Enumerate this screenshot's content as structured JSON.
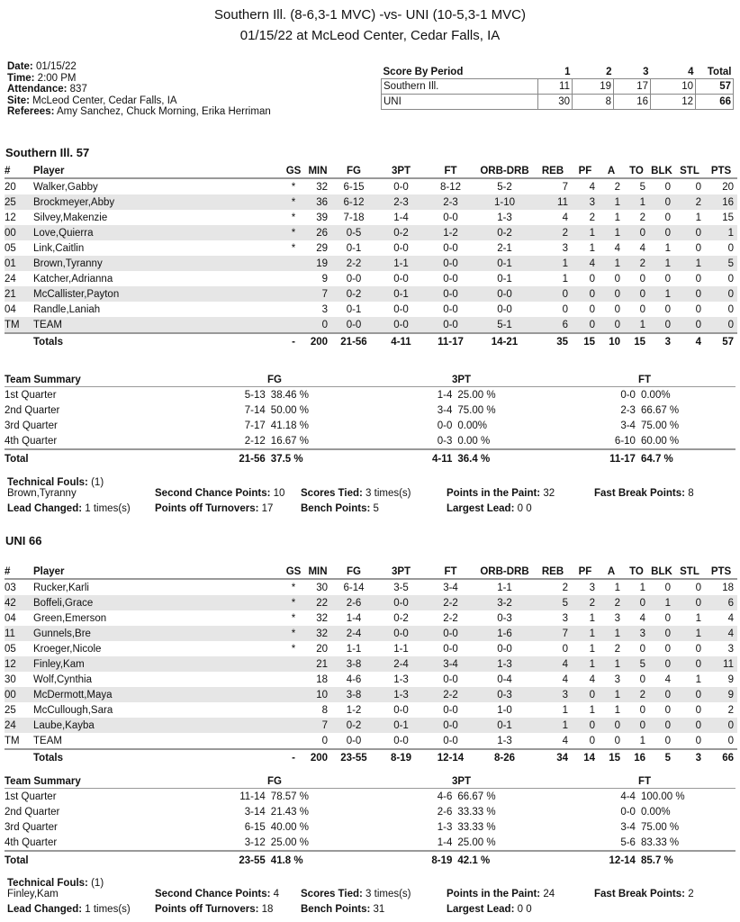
{
  "header": {
    "title": "Southern Ill. (8-6,3-1 MVC) -vs- UNI (10-5,3-1 MVC)",
    "subtitle": "01/15/22 at McLeod Center, Cedar Falls, IA"
  },
  "info": [
    {
      "label": "Date:",
      "value": "01/15/22"
    },
    {
      "label": "Time:",
      "value": "2:00 PM"
    },
    {
      "label": "Attendance:",
      "value": "837"
    },
    {
      "label": "Site:",
      "value": "McLeod Center, Cedar Falls, IA"
    },
    {
      "label": "Referees:",
      "value": "Amy Sanchez, Chuck Morning, Erika Herriman"
    }
  ],
  "score_by_period": {
    "headers": [
      "Score By Period",
      "1",
      "2",
      "3",
      "4",
      "Total"
    ],
    "rows": [
      [
        "Southern Ill.",
        "11",
        "19",
        "17",
        "10",
        "57"
      ],
      [
        "UNI",
        "30",
        "8",
        "16",
        "12",
        "66"
      ]
    ]
  },
  "box_headers": [
    "#",
    "Player",
    "GS",
    "MIN",
    "FG",
    "3PT",
    "FT",
    "ORB-DRB",
    "REB",
    "PF",
    "A",
    "TO",
    "BLK",
    "STL",
    "PTS"
  ],
  "summary_headers": [
    "Team Summary",
    "FG",
    "3PT",
    "FT"
  ],
  "teams": [
    {
      "heading": "Southern Ill. 57",
      "players": [
        [
          "20",
          "Walker,Gabby",
          "*",
          "32",
          "6-15",
          "0-0",
          "8-12",
          "5-2",
          "7",
          "4",
          "2",
          "5",
          "0",
          "0",
          "20"
        ],
        [
          "25",
          "Brockmeyer,Abby",
          "*",
          "36",
          "6-12",
          "2-3",
          "2-3",
          "1-10",
          "11",
          "3",
          "1",
          "1",
          "0",
          "2",
          "16"
        ],
        [
          "12",
          "Silvey,Makenzie",
          "*",
          "39",
          "7-18",
          "1-4",
          "0-0",
          "1-3",
          "4",
          "2",
          "1",
          "2",
          "0",
          "1",
          "15"
        ],
        [
          "00",
          "Love,Quierra",
          "*",
          "26",
          "0-5",
          "0-2",
          "1-2",
          "0-2",
          "2",
          "1",
          "1",
          "0",
          "0",
          "0",
          "1"
        ],
        [
          "05",
          "Link,Caitlin",
          "*",
          "29",
          "0-1",
          "0-0",
          "0-0",
          "2-1",
          "3",
          "1",
          "4",
          "4",
          "1",
          "0",
          "0"
        ],
        [
          "01",
          "Brown,Tyranny",
          "",
          "19",
          "2-2",
          "1-1",
          "0-0",
          "0-1",
          "1",
          "4",
          "1",
          "2",
          "1",
          "1",
          "5"
        ],
        [
          "24",
          "Katcher,Adrianna",
          "",
          "9",
          "0-0",
          "0-0",
          "0-0",
          "0-1",
          "1",
          "0",
          "0",
          "0",
          "0",
          "0",
          "0"
        ],
        [
          "21",
          "McCallister,Payton",
          "",
          "7",
          "0-2",
          "0-1",
          "0-0",
          "0-0",
          "0",
          "0",
          "0",
          "0",
          "1",
          "0",
          "0"
        ],
        [
          "04",
          "Randle,Laniah",
          "",
          "3",
          "0-1",
          "0-0",
          "0-0",
          "0-0",
          "0",
          "0",
          "0",
          "0",
          "0",
          "0",
          "0"
        ],
        [
          "TM",
          "TEAM",
          "",
          "0",
          "0-0",
          "0-0",
          "0-0",
          "5-1",
          "6",
          "0",
          "0",
          "1",
          "0",
          "0",
          "0"
        ]
      ],
      "totals": [
        "",
        "Totals",
        "-",
        "200",
        "21-56",
        "4-11",
        "11-17",
        "14-21",
        "35",
        "15",
        "10",
        "15",
        "3",
        "4",
        "57"
      ],
      "summary": [
        [
          "1st Quarter",
          "5-13",
          "38.46 %",
          "1-4",
          "25.00 %",
          "0-0",
          "0.00%"
        ],
        [
          "2nd Quarter",
          "7-14",
          "50.00 %",
          "3-4",
          "75.00 %",
          "2-3",
          "66.67 %"
        ],
        [
          "3rd Quarter",
          "7-17",
          "41.18 %",
          "0-0",
          "0.00%",
          "3-4",
          "75.00 %"
        ],
        [
          "4th Quarter",
          "2-12",
          "16.67 %",
          "0-3",
          "0.00 %",
          "6-10",
          "60.00 %"
        ]
      ],
      "summary_total": [
        "Total",
        "21-56",
        "37.5 %",
        "4-11",
        "36.4 %",
        "11-17",
        "64.7 %"
      ],
      "tech_label": "Technical Fouls:",
      "tech_value": "(1)",
      "tech_player": "Brown,Tyranny",
      "stats1": [
        {
          "label": "Second Chance Points:",
          "value": "10"
        },
        {
          "label": "Scores Tied:",
          "value": "3 times(s)"
        },
        {
          "label": "Points in the Paint:",
          "value": "32"
        },
        {
          "label": "Fast Break Points:",
          "value": "8"
        }
      ],
      "stats2": [
        {
          "label": "Lead Changed:",
          "value": "1 times(s)"
        },
        {
          "label": "Points off Turnovers:",
          "value": "17"
        },
        {
          "label": "Bench Points:",
          "value": "5"
        },
        {
          "label": "Largest Lead:",
          "value": "0 0"
        }
      ]
    },
    {
      "heading": "UNI 66",
      "players": [
        [
          "03",
          "Rucker,Karli",
          "*",
          "30",
          "6-14",
          "3-5",
          "3-4",
          "1-1",
          "2",
          "3",
          "1",
          "1",
          "0",
          "0",
          "18"
        ],
        [
          "42",
          "Boffeli,Grace",
          "*",
          "22",
          "2-6",
          "0-0",
          "2-2",
          "3-2",
          "5",
          "2",
          "2",
          "0",
          "1",
          "0",
          "6"
        ],
        [
          "04",
          "Green,Emerson",
          "*",
          "32",
          "1-4",
          "0-2",
          "2-2",
          "0-3",
          "3",
          "1",
          "3",
          "4",
          "0",
          "1",
          "4"
        ],
        [
          "11",
          "Gunnels,Bre",
          "*",
          "32",
          "2-4",
          "0-0",
          "0-0",
          "1-6",
          "7",
          "1",
          "1",
          "3",
          "0",
          "1",
          "4"
        ],
        [
          "05",
          "Kroeger,Nicole",
          "*",
          "20",
          "1-1",
          "1-1",
          "0-0",
          "0-0",
          "0",
          "1",
          "2",
          "0",
          "0",
          "0",
          "3"
        ],
        [
          "12",
          "Finley,Kam",
          "",
          "21",
          "3-8",
          "2-4",
          "3-4",
          "1-3",
          "4",
          "1",
          "1",
          "5",
          "0",
          "0",
          "11"
        ],
        [
          "30",
          "Wolf,Cynthia",
          "",
          "18",
          "4-6",
          "1-3",
          "0-0",
          "0-4",
          "4",
          "4",
          "3",
          "0",
          "4",
          "1",
          "9"
        ],
        [
          "00",
          "McDermott,Maya",
          "",
          "10",
          "3-8",
          "1-3",
          "2-2",
          "0-3",
          "3",
          "0",
          "1",
          "2",
          "0",
          "0",
          "9"
        ],
        [
          "25",
          "McCullough,Sara",
          "",
          "8",
          "1-2",
          "0-0",
          "0-0",
          "1-0",
          "1",
          "1",
          "1",
          "0",
          "0",
          "0",
          "2"
        ],
        [
          "24",
          "Laube,Kayba",
          "",
          "7",
          "0-2",
          "0-1",
          "0-0",
          "0-1",
          "1",
          "0",
          "0",
          "0",
          "0",
          "0",
          "0"
        ],
        [
          "TM",
          "TEAM",
          "",
          "0",
          "0-0",
          "0-0",
          "0-0",
          "1-3",
          "4",
          "0",
          "0",
          "1",
          "0",
          "0",
          "0"
        ]
      ],
      "totals": [
        "",
        "Totals",
        "-",
        "200",
        "23-55",
        "8-19",
        "12-14",
        "8-26",
        "34",
        "14",
        "15",
        "16",
        "5",
        "3",
        "66"
      ],
      "summary": [
        [
          "1st Quarter",
          "11-14",
          "78.57 %",
          "4-6",
          "66.67 %",
          "4-4",
          "100.00 %"
        ],
        [
          "2nd Quarter",
          "3-14",
          "21.43 %",
          "2-6",
          "33.33 %",
          "0-0",
          "0.00%"
        ],
        [
          "3rd Quarter",
          "6-15",
          "40.00 %",
          "1-3",
          "33.33 %",
          "3-4",
          "75.00 %"
        ],
        [
          "4th Quarter",
          "3-12",
          "25.00 %",
          "1-4",
          "25.00 %",
          "5-6",
          "83.33 %"
        ]
      ],
      "summary_total": [
        "Total",
        "23-55",
        "41.8 %",
        "8-19",
        "42.1 %",
        "12-14",
        "85.7 %"
      ],
      "tech_label": "Technical Fouls:",
      "tech_value": "(1)",
      "tech_player": "Finley,Kam",
      "stats1": [
        {
          "label": "Second Chance Points:",
          "value": "4"
        },
        {
          "label": "Scores Tied:",
          "value": "3 times(s)"
        },
        {
          "label": "Points in the Paint:",
          "value": "24"
        },
        {
          "label": "Fast Break Points:",
          "value": "2"
        }
      ],
      "stats2": [
        {
          "label": "Lead Changed:",
          "value": "1 times(s)"
        },
        {
          "label": "Points off Turnovers:",
          "value": "18"
        },
        {
          "label": "Bench Points:",
          "value": "31"
        },
        {
          "label": "Largest Lead:",
          "value": "0 0"
        }
      ]
    }
  ]
}
